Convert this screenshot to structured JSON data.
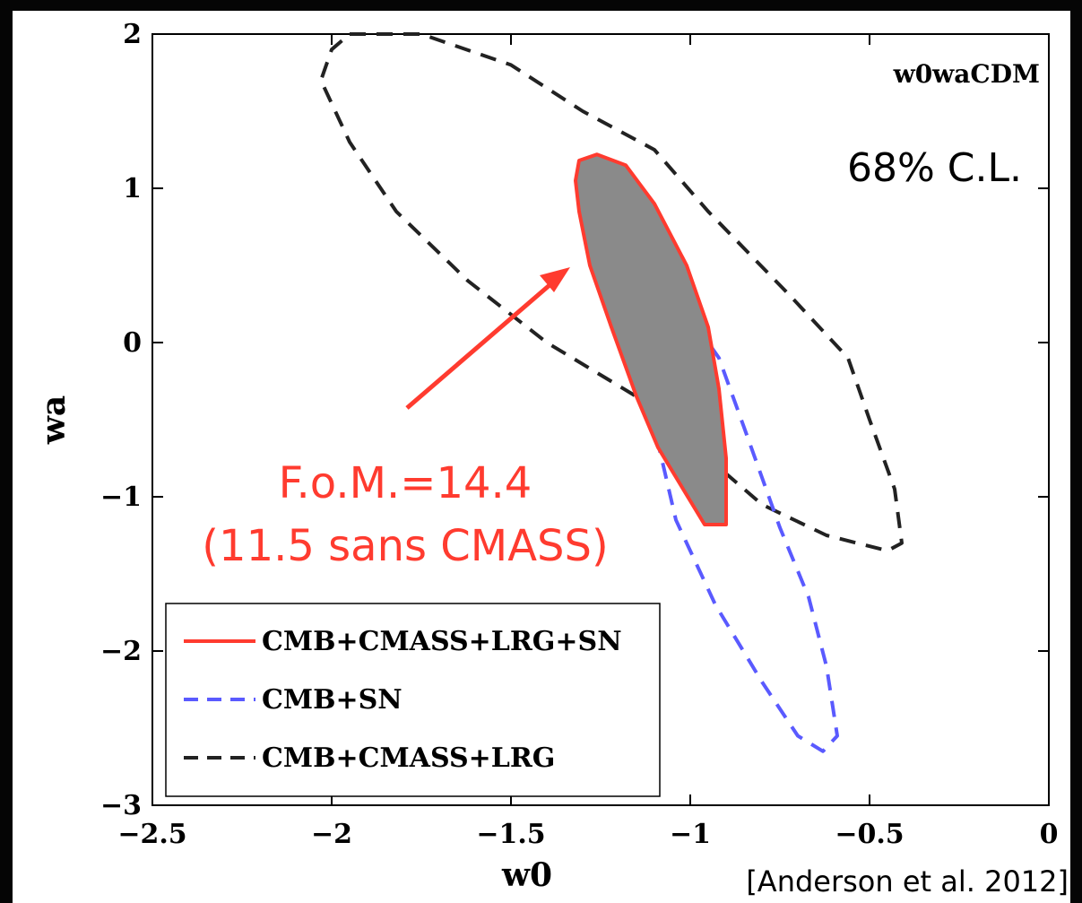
{
  "chart_data": {
    "type": "contour",
    "model_label": "w0waCDM",
    "confidence_label": "68% C.L.",
    "xlabel": "w0",
    "ylabel": "wa",
    "xlim": [
      -2.5,
      0
    ],
    "ylim": [
      -3,
      2
    ],
    "xticks": [
      "−2.5",
      "−2",
      "−1.5",
      "−1",
      "−0.5",
      "0"
    ],
    "yticks": [
      "−3",
      "−2",
      "−1",
      "0",
      "1",
      "2"
    ],
    "xtick_values": [
      -2.5,
      -2,
      -1.5,
      -1,
      -0.5,
      0
    ],
    "ytick_values": [
      -3,
      -2,
      -1,
      0,
      1,
      2
    ],
    "legend_position": "bottom-left",
    "series": [
      {
        "name": "CMB+CMASS+LRG+SN",
        "style": "solid-filled",
        "color": "#ff3b2f",
        "fill": "#8a8a8a",
        "contour": [
          [
            -1.31,
            1.18
          ],
          [
            -1.26,
            1.22
          ],
          [
            -1.18,
            1.15
          ],
          [
            -1.1,
            0.9
          ],
          [
            -1.01,
            0.5
          ],
          [
            -0.95,
            0.1
          ],
          [
            -0.92,
            -0.3
          ],
          [
            -0.9,
            -0.75
          ],
          [
            -0.9,
            -1.18
          ],
          [
            -0.96,
            -1.18
          ],
          [
            -1.02,
            -0.95
          ],
          [
            -1.09,
            -0.68
          ],
          [
            -1.15,
            -0.35
          ],
          [
            -1.22,
            0.1
          ],
          [
            -1.28,
            0.5
          ],
          [
            -1.31,
            0.85
          ],
          [
            -1.32,
            1.05
          ]
        ]
      },
      {
        "name": "CMB+SN",
        "style": "dashed",
        "color": "#5a5aff",
        "contour": [
          [
            -1.14,
            0.46
          ],
          [
            -1.06,
            0.4
          ],
          [
            -0.98,
            0.1
          ],
          [
            -0.92,
            -0.1
          ],
          [
            -0.85,
            -0.55
          ],
          [
            -0.75,
            -1.2
          ],
          [
            -0.67,
            -1.65
          ],
          [
            -0.62,
            -2.1
          ],
          [
            -0.59,
            -2.55
          ],
          [
            -0.63,
            -2.65
          ],
          [
            -0.7,
            -2.55
          ],
          [
            -0.8,
            -2.2
          ],
          [
            -0.93,
            -1.7
          ],
          [
            -1.04,
            -1.15
          ],
          [
            -1.1,
            -0.55
          ],
          [
            -1.15,
            0
          ],
          [
            -1.16,
            0.3
          ]
        ]
      },
      {
        "name": "CMB+CMASS+LRG",
        "style": "dashed",
        "color": "#222222",
        "contour": [
          [
            -1.95,
            2.0
          ],
          [
            -1.75,
            2.0
          ],
          [
            -1.5,
            1.8
          ],
          [
            -1.3,
            1.5
          ],
          [
            -1.1,
            1.25
          ],
          [
            -0.95,
            0.85
          ],
          [
            -0.72,
            0.3
          ],
          [
            -0.56,
            -0.1
          ],
          [
            -0.5,
            -0.5
          ],
          [
            -0.43,
            -0.95
          ],
          [
            -0.41,
            -1.3
          ],
          [
            -0.45,
            -1.35
          ],
          [
            -0.62,
            -1.25
          ],
          [
            -0.8,
            -1.05
          ],
          [
            -1.0,
            -0.65
          ],
          [
            -1.15,
            -0.35
          ],
          [
            -1.4,
            0.0
          ],
          [
            -1.62,
            0.4
          ],
          [
            -1.82,
            0.85
          ],
          [
            -1.95,
            1.3
          ],
          [
            -2.03,
            1.7
          ],
          [
            -2.0,
            1.9
          ]
        ]
      }
    ],
    "annotations": [
      {
        "text": "F.o.M.=14.4",
        "color": "#ff3b2f"
      },
      {
        "text": "(11.5 sans CMASS)",
        "color": "#ff3b2f"
      }
    ],
    "citation": "[Anderson et al. 2012]"
  }
}
